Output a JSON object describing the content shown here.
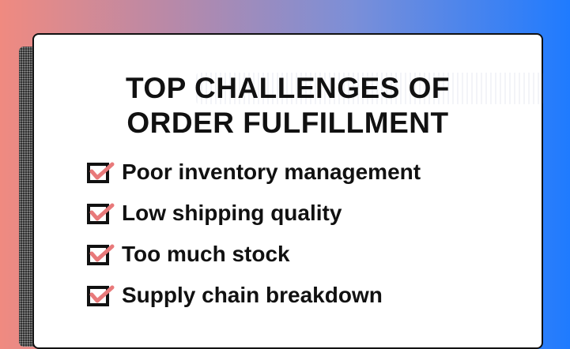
{
  "title": {
    "line1": "TOP CHALLENGES OF",
    "line2": "ORDER FULFILLMENT"
  },
  "items": [
    {
      "label": "Poor inventory management",
      "icon": "checkbox-checked-icon"
    },
    {
      "label": "Low shipping quality",
      "icon": "checkbox-checked-icon"
    },
    {
      "label": "Too much stock",
      "icon": "checkbox-checked-icon"
    },
    {
      "label": "Supply chain breakdown",
      "icon": "checkbox-checked-icon"
    }
  ],
  "colors": {
    "gradient_left": "#f08a80",
    "gradient_right": "#1f7bff",
    "check_mark": "#e8797a",
    "text": "#111111",
    "card": "#ffffff"
  }
}
